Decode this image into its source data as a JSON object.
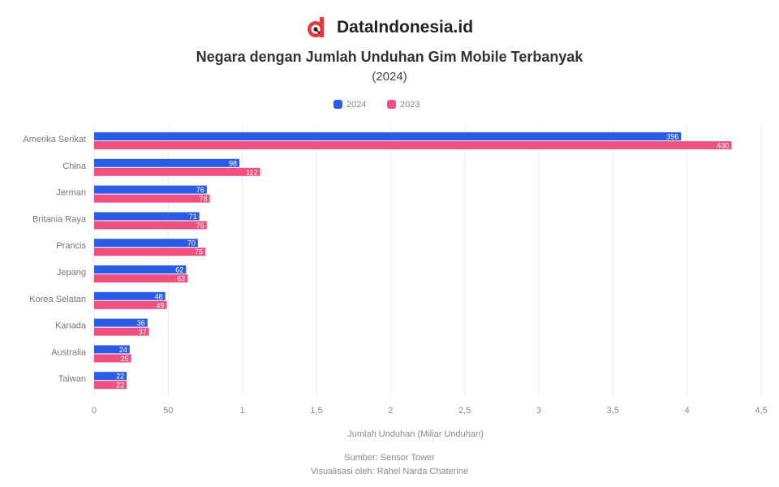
{
  "brand": {
    "name": "DataIndonesia.id",
    "logo_icon": "dataindonesia-logo-icon",
    "accent": "#e8363a"
  },
  "title": "Negara dengan Jumlah Unduhan Gim Mobile Terbanyak",
  "subtitle": "(2024)",
  "footer": {
    "source": "Sumber: Sensor Tower",
    "visualized_by": "Visualisasi oleh: Rahel Narda Chaterine"
  },
  "chart_data": {
    "type": "bar",
    "orientation": "horizontal",
    "categories": [
      "Amerika Serikat",
      "China",
      "Jerman",
      "Britania Raya",
      "Prancis",
      "Jepang",
      "Korea Selatan",
      "Kanada",
      "Australia",
      "Taiwan"
    ],
    "series": [
      {
        "name": "2024",
        "color": "#2b5ce6",
        "values": [
          396,
          98,
          76,
          71,
          70,
          62,
          48,
          36,
          24,
          22
        ]
      },
      {
        "name": "2023",
        "color": "#f0507f",
        "values": [
          430,
          112,
          78,
          76,
          75,
          63,
          49,
          37,
          25,
          22
        ]
      }
    ],
    "xlabel": "Jumlah Unduhan (Miliar Unduhan)",
    "ylabel": "",
    "xlim": [
      0,
      450
    ],
    "xticks": [
      "0",
      "50",
      "1",
      "1,5",
      "2",
      "2,5",
      "3",
      "3,5",
      "4",
      "4,5"
    ],
    "legend_position": "top-center",
    "grid": true
  }
}
